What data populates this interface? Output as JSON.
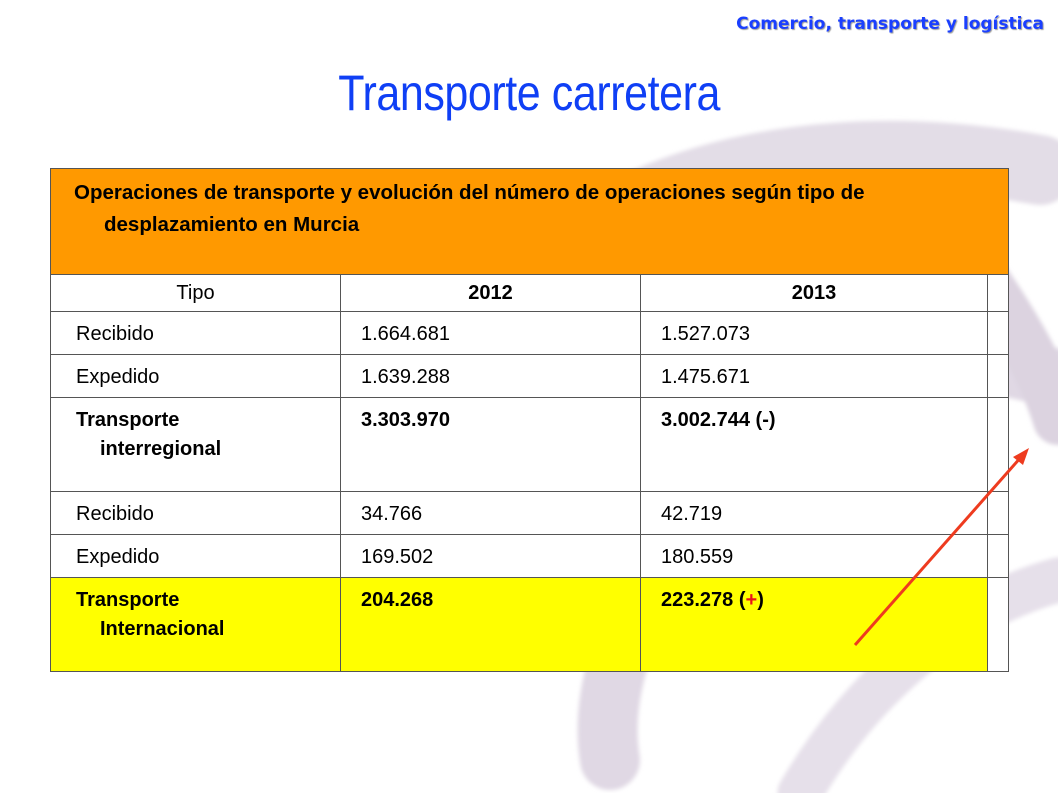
{
  "header": {
    "section": "Comercio, transporte y logística"
  },
  "title": "Transporte carretera",
  "table": {
    "caption": "Operaciones de transporte y evolución del número de operaciones según tipo de desplazamiento en Murcia",
    "headers": {
      "tipo": "Tipo",
      "y2012": "2012",
      "y2013": "2013"
    },
    "rows": [
      {
        "label": "Recibido",
        "v2012": "1.664.681",
        "v2013": "1.527.073"
      },
      {
        "label": "Expedido",
        "v2012": "1.639.288",
        "v2013": "1.475.671"
      },
      {
        "label_line1": "Transporte",
        "label_line2": "interregional",
        "v2012": "3.303.970",
        "v2013": "3.002.744 (-)"
      },
      {
        "label": "Recibido",
        "v2012": "34.766",
        "v2013": "42.719"
      },
      {
        "label": "Expedido",
        "v2012": "169.502",
        "v2013": "180.559"
      },
      {
        "label_line1": "Transporte",
        "label_line2": "Internacional",
        "v2012": "204.268",
        "v2013_value": "223.278",
        "v2013_open": " (",
        "v2013_sign": "+",
        "v2013_close": ")"
      }
    ]
  },
  "colors": {
    "title": "#0f3ff5",
    "caption_bg": "#ff9900",
    "highlight_bg": "#ffff00",
    "arrow": "#ee3b1f",
    "plus_sign": "#e8141c"
  },
  "decorations": {
    "trend_arrow_icon": "arrow-up-right"
  }
}
